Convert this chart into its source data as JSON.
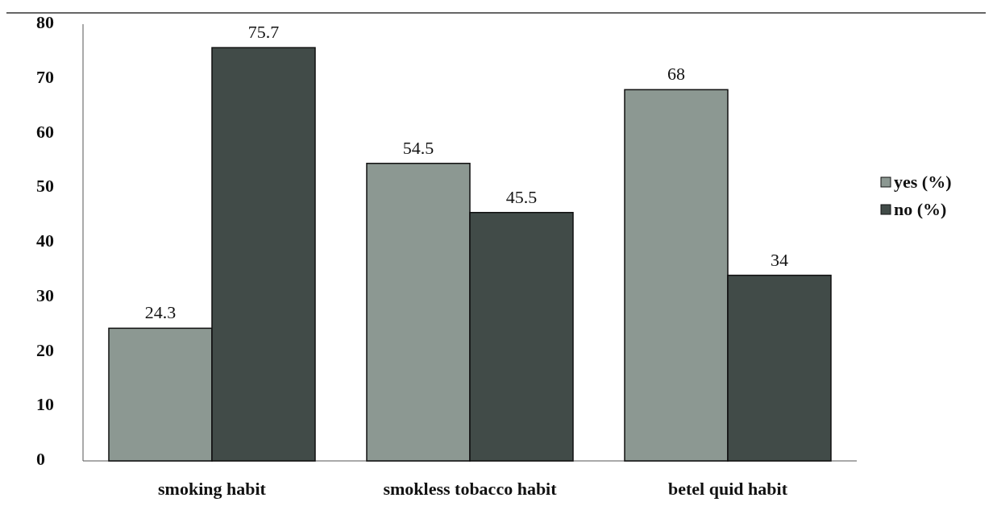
{
  "chart_data": {
    "type": "bar",
    "categories": [
      "smoking habit",
      "smokless tobacco habit",
      "betel quid habit"
    ],
    "series": [
      {
        "name": "yes (%)",
        "color": "#8c9892",
        "values": [
          24.3,
          54.5,
          68
        ]
      },
      {
        "name": "no (%)",
        "color": "#414b48",
        "values": [
          75.7,
          45.5,
          34
        ]
      }
    ],
    "ylim": [
      0,
      80
    ],
    "yticks": [
      0,
      10,
      20,
      30,
      40,
      50,
      60,
      70,
      80
    ],
    "grid": false,
    "legend": "right",
    "data_labels": true
  }
}
